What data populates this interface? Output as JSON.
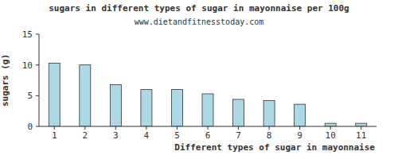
{
  "chart_data": {
    "type": "bar",
    "title": "sugars in different types of sugar in mayonnaise per 100g",
    "subtitle": "www.dietandfitnesstoday.com",
    "x_label": "Different types of sugar in mayonnaise",
    "y_label": "sugars (g)",
    "categories": [
      "1",
      "2",
      "3",
      "4",
      "5",
      "6",
      "7",
      "8",
      "9",
      "10",
      "11"
    ],
    "values": [
      10.3,
      10.0,
      6.8,
      6.0,
      6.0,
      5.3,
      4.4,
      4.2,
      3.6,
      0.5,
      0.5
    ],
    "color": "#add8e6",
    "ylim": [
      0,
      15
    ],
    "yticks": [
      0,
      5,
      10,
      15
    ],
    "grid": false
  }
}
